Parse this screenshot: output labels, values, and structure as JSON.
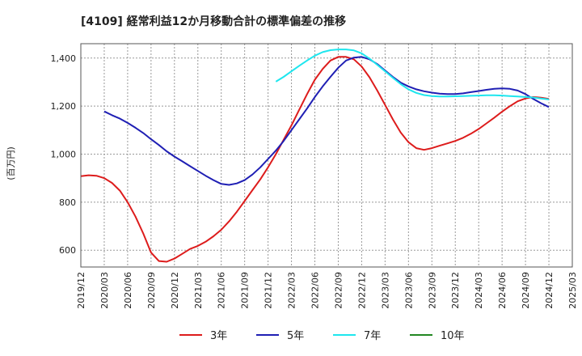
{
  "chart_data": {
    "type": "line",
    "title": "[4109]  経常利益12か月移動合計の標準偏差の推移",
    "ylabel": "(百万円)",
    "xlabel": "",
    "ylim": [
      530,
      1460
    ],
    "yticks": [
      600,
      800,
      1000,
      1200,
      1400
    ],
    "ytick_labels": [
      "600",
      "800",
      "1,000",
      "1,200",
      "1,400"
    ],
    "x_range": [
      "2019/12",
      "2025/03"
    ],
    "xtick_labels": [
      "2019/12",
      "2020/03",
      "2020/06",
      "2020/09",
      "2020/12",
      "2021/03",
      "2021/06",
      "2021/09",
      "2021/12",
      "2022/03",
      "2022/06",
      "2022/09",
      "2022/12",
      "2023/03",
      "2023/06",
      "2023/09",
      "2023/12",
      "2024/03",
      "2024/06",
      "2024/09",
      "2024/12",
      "2025/03"
    ],
    "grid": true,
    "legend_position": "bottom",
    "series": [
      {
        "name": "3年",
        "color": "#dd1c1c",
        "x": [
          "2019/12",
          "2020/01",
          "2020/02",
          "2020/03",
          "2020/04",
          "2020/05",
          "2020/06",
          "2020/07",
          "2020/08",
          "2020/09",
          "2020/10",
          "2020/11",
          "2020/12",
          "2021/01",
          "2021/02",
          "2021/03",
          "2021/04",
          "2021/05",
          "2021/06",
          "2021/07",
          "2021/08",
          "2021/09",
          "2021/10",
          "2021/11",
          "2021/12",
          "2022/01",
          "2022/02",
          "2022/03",
          "2022/04",
          "2022/05",
          "2022/06",
          "2022/07",
          "2022/08",
          "2022/09",
          "2022/10",
          "2022/11",
          "2022/12",
          "2023/01",
          "2023/02",
          "2023/03",
          "2023/04",
          "2023/05",
          "2023/06",
          "2023/07",
          "2023/08",
          "2023/09",
          "2023/10",
          "2023/11",
          "2023/12",
          "2024/01",
          "2024/02",
          "2024/03",
          "2024/04",
          "2024/05",
          "2024/06",
          "2024/07",
          "2024/08",
          "2024/09",
          "2024/10",
          "2024/11",
          "2024/12"
        ],
        "values": [
          908,
          912,
          910,
          900,
          880,
          848,
          800,
          740,
          670,
          590,
          555,
          552,
          565,
          585,
          605,
          618,
          635,
          658,
          685,
          720,
          760,
          805,
          850,
          895,
          945,
          1000,
          1060,
          1120,
          1185,
          1250,
          1310,
          1355,
          1390,
          1405,
          1405,
          1395,
          1365,
          1320,
          1265,
          1205,
          1145,
          1090,
          1050,
          1025,
          1018,
          1025,
          1035,
          1045,
          1055,
          1068,
          1085,
          1105,
          1128,
          1152,
          1177,
          1200,
          1220,
          1232,
          1238,
          1235,
          1230
        ]
      },
      {
        "name": "5年",
        "color": "#1f1fb4",
        "x": [
          "2020/03",
          "2020/04",
          "2020/05",
          "2020/06",
          "2020/07",
          "2020/08",
          "2020/09",
          "2020/10",
          "2020/11",
          "2020/12",
          "2021/01",
          "2021/02",
          "2021/03",
          "2021/04",
          "2021/05",
          "2021/06",
          "2021/07",
          "2021/08",
          "2021/09",
          "2021/10",
          "2021/11",
          "2021/12",
          "2022/01",
          "2022/02",
          "2022/03",
          "2022/04",
          "2022/05",
          "2022/06",
          "2022/07",
          "2022/08",
          "2022/09",
          "2022/10",
          "2022/11",
          "2022/12",
          "2023/01",
          "2023/02",
          "2023/03",
          "2023/04",
          "2023/05",
          "2023/06",
          "2023/07",
          "2023/08",
          "2023/09",
          "2023/10",
          "2023/11",
          "2023/12",
          "2024/01",
          "2024/02",
          "2024/03",
          "2024/04",
          "2024/05",
          "2024/06",
          "2024/07",
          "2024/08",
          "2024/09",
          "2024/10",
          "2024/11",
          "2024/12"
        ],
        "values": [
          1178,
          1162,
          1148,
          1130,
          1110,
          1088,
          1062,
          1038,
          1012,
          990,
          970,
          950,
          930,
          910,
          892,
          876,
          872,
          878,
          892,
          915,
          945,
          980,
          1015,
          1055,
          1100,
          1145,
          1190,
          1238,
          1282,
          1322,
          1360,
          1390,
          1402,
          1405,
          1395,
          1375,
          1348,
          1322,
          1298,
          1282,
          1270,
          1262,
          1256,
          1252,
          1250,
          1250,
          1253,
          1258,
          1263,
          1268,
          1272,
          1274,
          1272,
          1265,
          1250,
          1230,
          1212,
          1196
        ]
      },
      {
        "name": "7年",
        "color": "#1ee6ee",
        "x": [
          "2022/01",
          "2022/02",
          "2022/03",
          "2022/04",
          "2022/05",
          "2022/06",
          "2022/07",
          "2022/08",
          "2022/09",
          "2022/10",
          "2022/11",
          "2022/12",
          "2023/01",
          "2023/02",
          "2023/03",
          "2023/04",
          "2023/05",
          "2023/06",
          "2023/07",
          "2023/08",
          "2023/09",
          "2023/10",
          "2023/11",
          "2023/12",
          "2024/01",
          "2024/02",
          "2024/03",
          "2024/04",
          "2024/05",
          "2024/06",
          "2024/07",
          "2024/08",
          "2024/09",
          "2024/10",
          "2024/11",
          "2024/12"
        ],
        "values": [
          1302,
          1322,
          1345,
          1368,
          1390,
          1410,
          1425,
          1433,
          1436,
          1436,
          1432,
          1420,
          1398,
          1372,
          1345,
          1318,
          1292,
          1270,
          1255,
          1246,
          1242,
          1240,
          1240,
          1241,
          1242,
          1243,
          1244,
          1245,
          1245,
          1244,
          1242,
          1240,
          1238,
          1236,
          1232,
          1228
        ]
      },
      {
        "name": "10年",
        "color": "#228822",
        "x": [],
        "values": []
      }
    ]
  }
}
